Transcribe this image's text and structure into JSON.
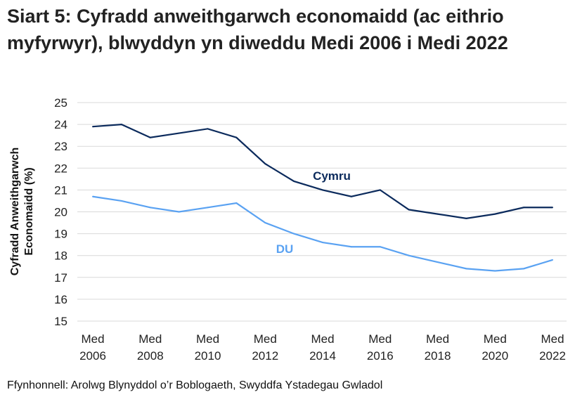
{
  "chart_data": {
    "type": "line",
    "title": "Siart 5: Cyfradd anweithgarwch economaidd (ac eithrio myfyrwyr), blwyddyn yn diweddu Medi 2006 i Medi 2022",
    "ylabel": "Cyfradd Anweithgarwch Economaidd (%)",
    "xlabel": "",
    "ylim": [
      15,
      25
    ],
    "yticks": [
      "15",
      "16",
      "17",
      "18",
      "19",
      "20",
      "21",
      "22",
      "23",
      "24",
      "25"
    ],
    "x": [
      2006,
      2007,
      2008,
      2009,
      2010,
      2011,
      2012,
      2013,
      2014,
      2015,
      2016,
      2017,
      2018,
      2019,
      2020,
      2021,
      2022
    ],
    "xticks": [
      {
        "top": "Med",
        "bottom": "2006"
      },
      {
        "top": "Med",
        "bottom": "2008"
      },
      {
        "top": "Med",
        "bottom": "2010"
      },
      {
        "top": "Med",
        "bottom": "2012"
      },
      {
        "top": "Med",
        "bottom": "2014"
      },
      {
        "top": "Med",
        "bottom": "2016"
      },
      {
        "top": "Med",
        "bottom": "2018"
      },
      {
        "top": "Med",
        "bottom": "2020"
      },
      {
        "top": "Med",
        "bottom": "2022"
      }
    ],
    "grid": true,
    "series": [
      {
        "name": "Cymru",
        "color": "#0b2a5c",
        "values": [
          23.9,
          24.0,
          23.4,
          23.6,
          23.8,
          23.4,
          22.2,
          21.4,
          21.0,
          20.7,
          21.0,
          20.1,
          19.9,
          19.7,
          19.9,
          20.2,
          20.2
        ]
      },
      {
        "name": "DU",
        "color": "#5aa2f2",
        "values": [
          20.7,
          20.5,
          20.2,
          20.0,
          20.2,
          20.4,
          19.5,
          19.0,
          18.6,
          18.4,
          18.4,
          18.0,
          17.7,
          17.4,
          17.3,
          17.4,
          17.8
        ]
      }
    ],
    "source": "Ffynhonnell: Arolwg Blynyddol o’r Boblogaeth, Swyddfa Ystadegau Gwladol"
  }
}
